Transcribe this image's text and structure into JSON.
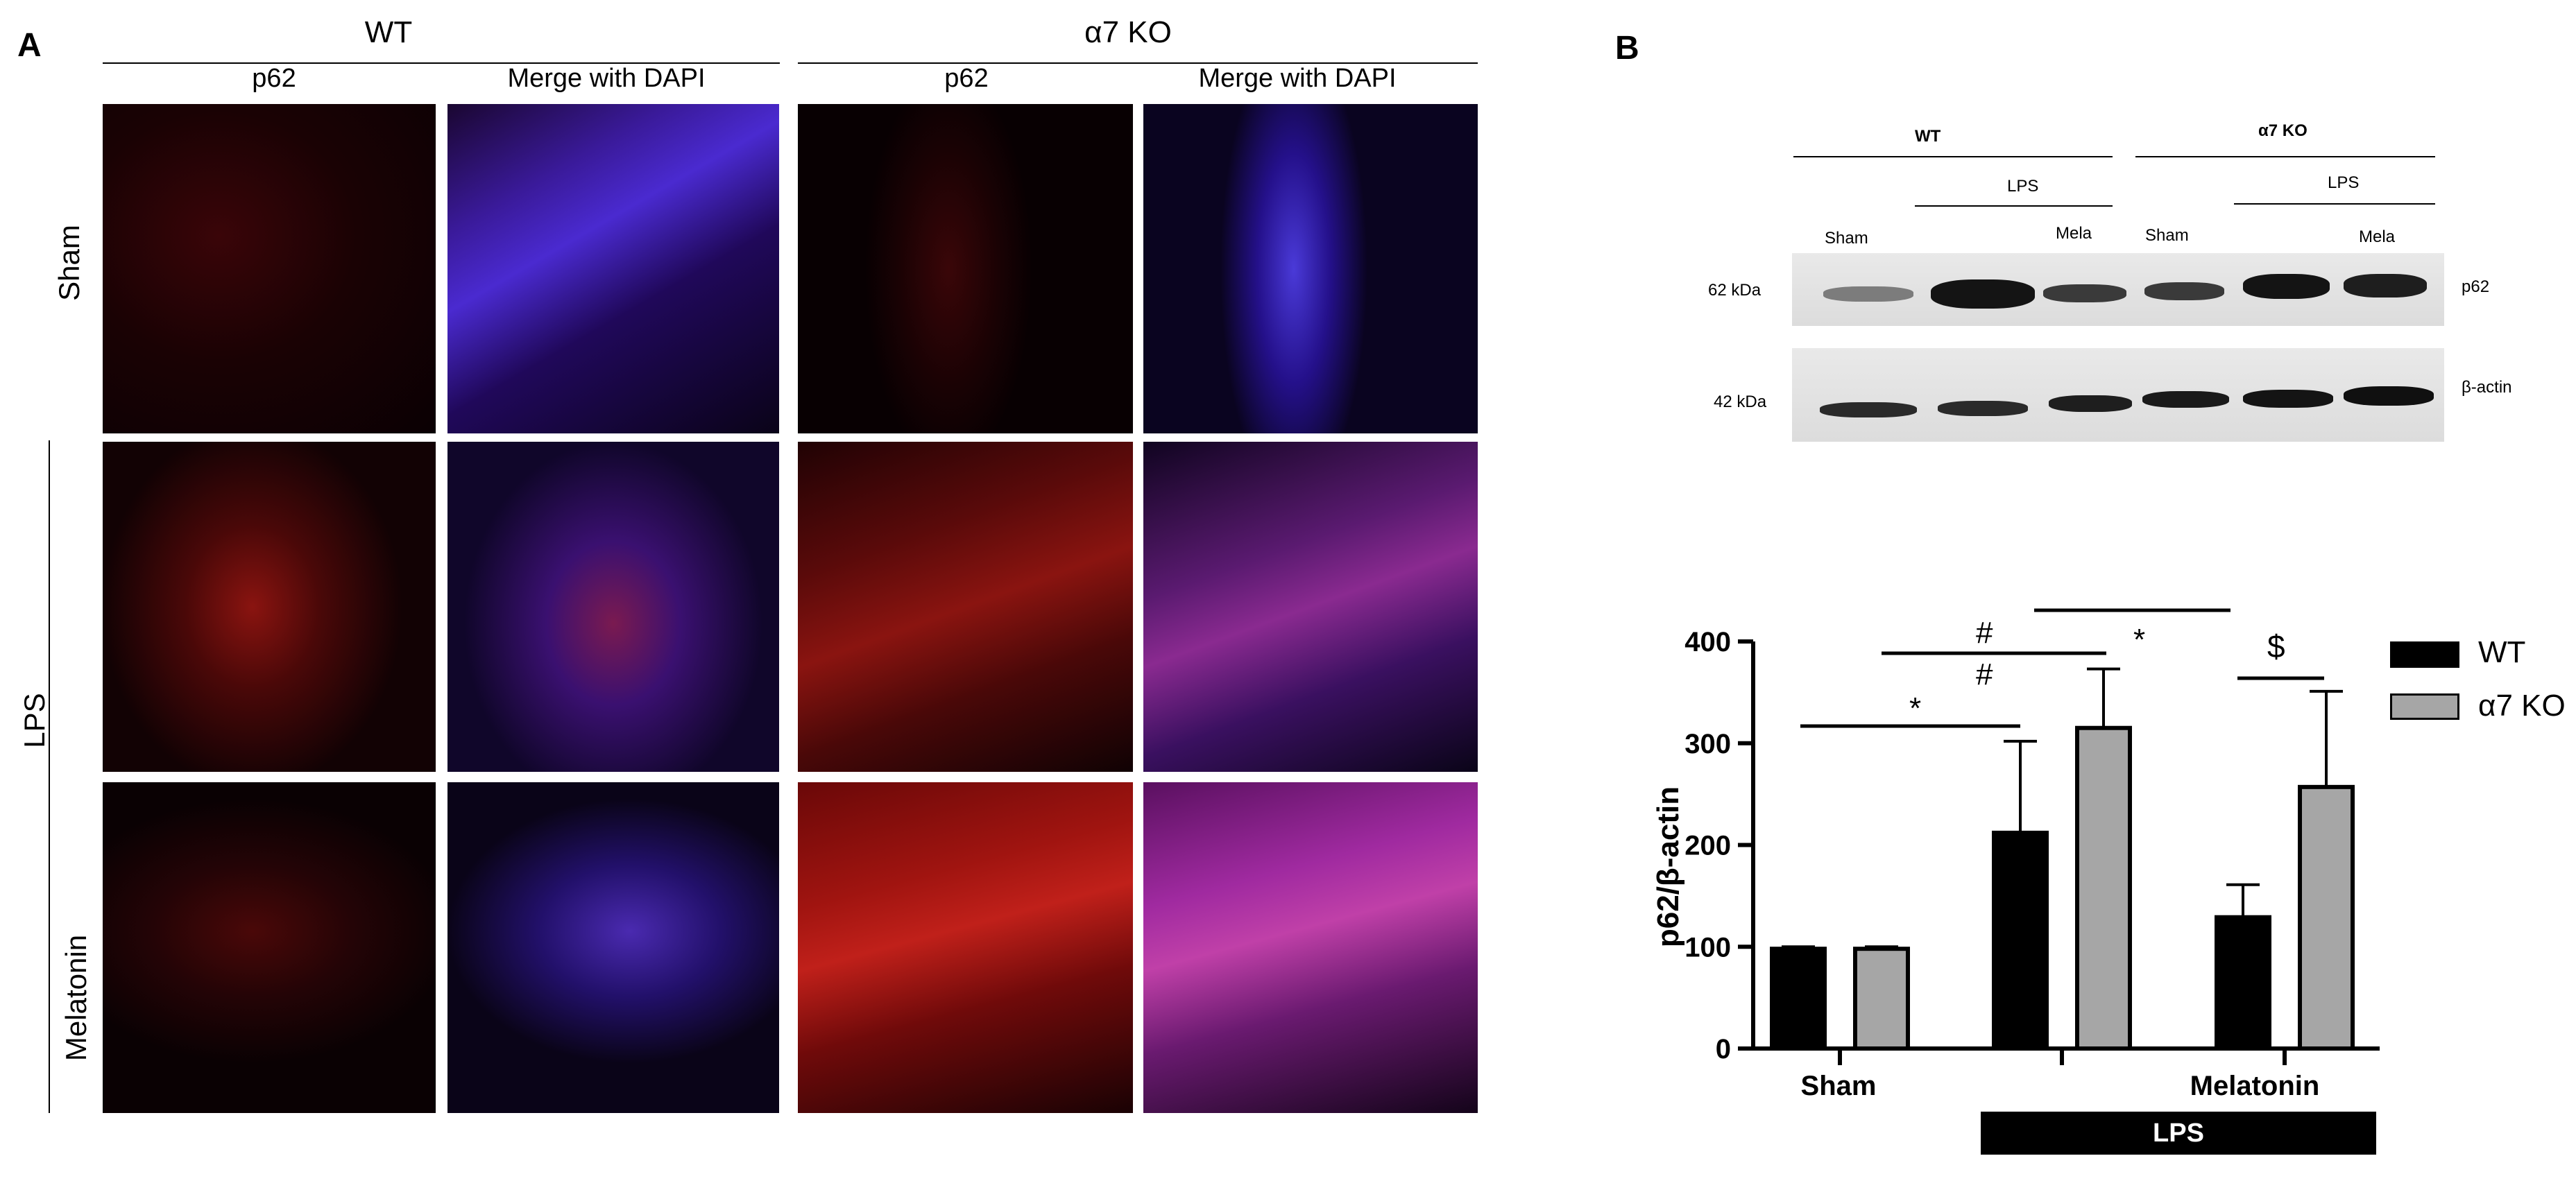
{
  "panelA": {
    "letter": "A",
    "groups": {
      "wt": "WT",
      "ko": "α7 KO"
    },
    "columns": [
      "p62",
      "Merge with DAPI",
      "p62",
      "Merge with DAPI"
    ],
    "rows": {
      "sham": "Sham",
      "lps": "LPS",
      "melatonin": "Melatonin"
    }
  },
  "panelB": {
    "letter": "B",
    "blot": {
      "wt": "WT",
      "ko": "α7 KO",
      "lps_left": "LPS",
      "lps_right": "LPS",
      "lanes": [
        "Sham",
        "Mela",
        "Sham",
        "Mela"
      ],
      "kda_top": "62  kDa",
      "kda_bottom": "42 kDa",
      "protein_top": "p62",
      "protein_bottom": "β-actin"
    },
    "sig": {
      "star1": "*",
      "hash1": "#",
      "hash2": "#",
      "star2": "*",
      "dollar": "$"
    }
  },
  "chart_data": {
    "type": "bar",
    "categories": [
      "Sham",
      "",
      "Melatonin"
    ],
    "bottom_bar_label": "LPS",
    "ylabel": "p62/β-actin",
    "ylim": [
      0,
      400
    ],
    "yticks": [
      0,
      100,
      200,
      300,
      400
    ],
    "series": [
      {
        "name": "WT",
        "values": [
          98,
          212,
          129
        ],
        "errors": [
          2,
          90,
          32
        ],
        "color": "#000000"
      },
      {
        "name": "α7 KO",
        "values": [
          98,
          315,
          257
        ],
        "errors": [
          2,
          58,
          94
        ],
        "color": "#a6a6a6"
      }
    ],
    "legend": "right"
  }
}
